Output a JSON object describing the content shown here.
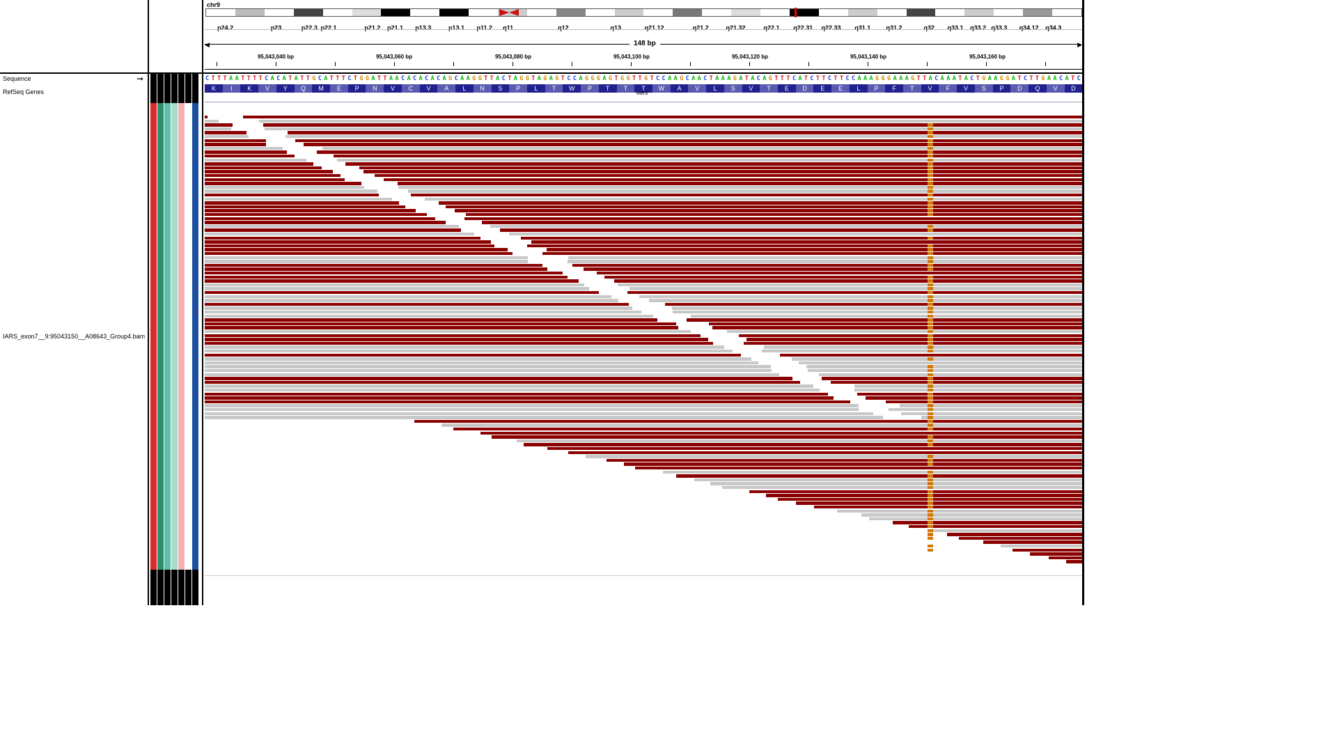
{
  "tracks": {
    "sequence_label": "Sequence",
    "refseq_label": "RefSeq Genes",
    "bam_label": "IARS_exon7__9:95043150__A08643_Group4.bam",
    "arrow_icon": "right-arrow-icon"
  },
  "chromosome": {
    "name": "chr9",
    "bands": [
      "p24.2",
      "p23",
      "p22.3",
      "p22.1",
      "p21.2",
      "p21.1",
      "p13.3",
      "p13.1",
      "p11.2",
      "q11",
      "q12",
      "q13",
      "q21.12",
      "q21.2",
      "q21.32",
      "q22.1",
      "q22.31",
      "q22.33",
      "q31.1",
      "q31.2",
      "q32",
      "q33.1",
      "q33.2",
      "q33.3",
      "q34.12",
      "q34.3"
    ]
  },
  "ruler": {
    "span": "148 bp",
    "ticks": [
      "95,043,040 bp",
      "95,043,060 bp",
      "95,043,080 bp",
      "95,043,100 bp",
      "95,043,120 bp",
      "95,043,140 bp",
      "95,043,160 bp"
    ]
  },
  "sequence": "CTTTAATTTTCACATATTGCATTTCTGGATTAACACACACAGCAAGGTTACTAGGTAGAGTCCAGGGAGTGGTTGTCCAAGCAACTAAAGATACAGTTTCATCTTCTTCCAAAGGGAAAGTTACAAATACTGAAGGATCTTGAACATC",
  "amino_acids": [
    "K",
    "I",
    "K",
    "V",
    "Y",
    "Q",
    "M",
    "E",
    "P",
    "N",
    "V",
    "C",
    "V",
    "A",
    "L",
    "N",
    "S",
    "P",
    "L",
    "T",
    "W",
    "P",
    "T",
    "T",
    "T",
    "W",
    "A",
    "V",
    "L",
    "S",
    "V",
    "T",
    "E",
    "D",
    "E",
    "E",
    "L",
    "P",
    "F",
    "T",
    "V",
    "F",
    "V",
    "S",
    "P",
    "D",
    "Q",
    "V",
    "D"
  ],
  "gene": {
    "name": "IARS"
  },
  "colors": {
    "forward_read": "#8b0000",
    "reverse_read": "#c8c8c8",
    "mismatch_orange": "#d2770a",
    "base_A": "#0bb40b",
    "base_C": "#1a3fd8",
    "base_G": "#d28a00",
    "base_T": "#d21a1a",
    "aa_dark": "#20208f",
    "aa_light": "#5a5ab0"
  },
  "attribute_colors": [
    "#d92b2b",
    "#2f8f6a",
    "#5fc0a5",
    "#a6dccb",
    "#f7b1b1",
    "#ffffff",
    "#1c4fa0"
  ]
}
